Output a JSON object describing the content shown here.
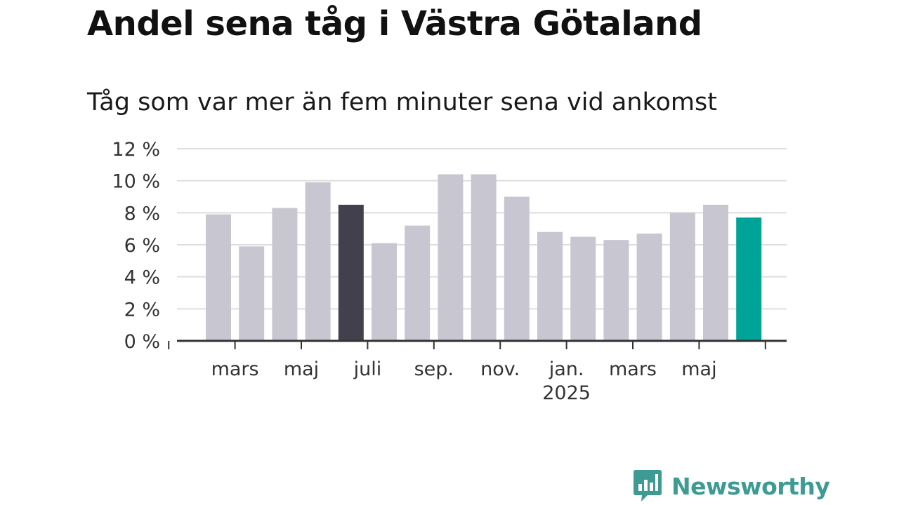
{
  "title": "Andel sena tåg i Västra Götaland",
  "subtitle": "Tåg som var mer än fem minuter sena vid ankomst",
  "brand": {
    "name": "Newsworthy",
    "color": "#3d9b93",
    "icon": "bar-chart-speech-bubble-icon"
  },
  "colors": {
    "bar_default": "#c8c6d1",
    "bar_highlight_prev": "#41404c",
    "bar_highlight_latest": "#00a398",
    "grid": "#dddddd",
    "axis": "#333333"
  },
  "chart_data": {
    "type": "bar",
    "categories": [
      "2024-02",
      "2024-03",
      "2024-04",
      "2024-05",
      "2024-06",
      "2024-07",
      "2024-08",
      "2024-09",
      "2024-10",
      "2024-11",
      "2024-12",
      "2025-01",
      "2025-02",
      "2025-03",
      "2025-04",
      "2025-05",
      "2025-06"
    ],
    "values": [
      7.9,
      5.9,
      8.3,
      9.9,
      8.5,
      6.1,
      7.2,
      10.4,
      10.4,
      9.0,
      6.8,
      6.5,
      6.3,
      6.7,
      8.0,
      8.5,
      7.7
    ],
    "highlight": {
      "2024-06": "bar_highlight_prev",
      "2025-06": "bar_highlight_latest"
    },
    "ylim": [
      0,
      12
    ],
    "yticks": [
      0,
      2,
      4,
      6,
      8,
      10,
      12
    ],
    "ytick_suffix": " %",
    "xticks": [
      {
        "label": "mars",
        "sublabel": ""
      },
      {
        "label": "maj",
        "sublabel": ""
      },
      {
        "label": "juli",
        "sublabel": ""
      },
      {
        "label": "sep.",
        "sublabel": ""
      },
      {
        "label": "nov.",
        "sublabel": ""
      },
      {
        "label": "jan.",
        "sublabel": "2025"
      },
      {
        "label": "mars",
        "sublabel": ""
      },
      {
        "label": "maj",
        "sublabel": ""
      }
    ],
    "grid": true,
    "legend": "none",
    "xlabel": "",
    "ylabel": ""
  }
}
